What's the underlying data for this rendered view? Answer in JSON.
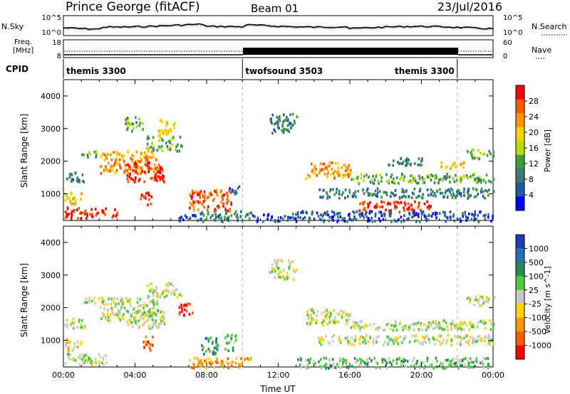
{
  "header": {
    "title": "Prince George (fitACF)",
    "beam": "Beam 01",
    "date": "23/Jul/2016"
  },
  "top_panels": {
    "nsky_label": "N.Sky",
    "nsky_ticks": [
      "10^5",
      "10^0"
    ],
    "nsearch_label": "N.Search",
    "nsearch_ticks": [
      "10^5",
      "10^0"
    ],
    "freq_label_line1": "Freq.",
    "freq_label_line2": "[MHz]",
    "freq_ticks": [
      "18",
      "8"
    ],
    "nave_label": "Nave",
    "nave_ticks": [
      "60",
      "0"
    ],
    "cpid_label": "CPID",
    "cpid_segments": [
      {
        "name": "themis 3300",
        "start_h": 0,
        "end_h": 10
      },
      {
        "name": "twofsound 3503",
        "start_h": 10,
        "end_h": 22
      },
      {
        "name": "themis 3300",
        "start_h": 22,
        "end_h": 24
      }
    ]
  },
  "chart_data": [
    {
      "type": "heatmap",
      "panel": "power",
      "ylabel": "Slant Range [km]",
      "x_range": [
        0,
        24
      ],
      "ylim": [
        180,
        4500
      ],
      "yticks": [
        1000,
        2000,
        3000,
        4000
      ],
      "colorbar_label": "Power [dB]",
      "colorbar_ticks": [
        "28",
        "24",
        "20",
        "16",
        "12",
        "8",
        "4"
      ],
      "colors": [
        "#ff0000",
        "#ff5a00",
        "#ff9600",
        "#ffd200",
        "#b4dc00",
        "#3ca03c",
        "#3c7878",
        "#1e5aa0",
        "#0000ff"
      ],
      "blobs": [
        {
          "t": [
            0.0,
            2.4
          ],
          "r": [
            280,
            620
          ],
          "level": 0
        },
        {
          "t": [
            2.6,
            3.0
          ],
          "r": [
            280,
            560
          ],
          "level": 0
        },
        {
          "t": [
            0.0,
            1.0
          ],
          "r": [
            700,
            1100
          ],
          "level": 3
        },
        {
          "t": [
            0.0,
            1.2
          ],
          "r": [
            1400,
            1700
          ],
          "level": 6
        },
        {
          "t": [
            1.0,
            2.0
          ],
          "r": [
            2150,
            2350
          ],
          "level": 5
        },
        {
          "t": [
            2.0,
            5.2
          ],
          "r": [
            1650,
            2350
          ],
          "level": 2
        },
        {
          "t": [
            3.5,
            5.6
          ],
          "r": [
            1400,
            2000
          ],
          "level": 0
        },
        {
          "t": [
            4.2,
            4.9
          ],
          "r": [
            700,
            1100
          ],
          "level": 0
        },
        {
          "t": [
            4.6,
            6.6
          ],
          "r": [
            2350,
            2800
          ],
          "level": 5
        },
        {
          "t": [
            5.2,
            6.2
          ],
          "r": [
            2800,
            3300
          ],
          "level": 3
        },
        {
          "t": [
            3.4,
            4.4
          ],
          "r": [
            2950,
            3400
          ],
          "level": 5
        },
        {
          "t": [
            7.0,
            9.4
          ],
          "r": [
            500,
            1150
          ],
          "level": 1
        },
        {
          "t": [
            9.2,
            9.8
          ],
          "r": [
            1000,
            1300
          ],
          "level": 7
        },
        {
          "t": [
            6.4,
            7.5
          ],
          "r": [
            180,
            420
          ],
          "level": 7
        },
        {
          "t": [
            7.6,
            10.5
          ],
          "r": [
            180,
            500
          ],
          "level": 6
        },
        {
          "t": [
            10.5,
            13.0
          ],
          "r": [
            180,
            420
          ],
          "level": 7
        },
        {
          "t": [
            13.5,
            16.0
          ],
          "r": [
            1500,
            2000
          ],
          "level": 2
        },
        {
          "t": [
            16.0,
            24.0
          ],
          "r": [
            1350,
            1650
          ],
          "level": 5
        },
        {
          "t": [
            14.2,
            24.0
          ],
          "r": [
            900,
            1200
          ],
          "level": 6
        },
        {
          "t": [
            16.5,
            20.5
          ],
          "r": [
            500,
            800
          ],
          "level": 0
        },
        {
          "t": [
            13.0,
            24.0
          ],
          "r": [
            180,
            500
          ],
          "level": 7
        },
        {
          "t": [
            18.0,
            20.0
          ],
          "r": [
            1900,
            2150
          ],
          "level": 6
        },
        {
          "t": [
            21.0,
            22.5
          ],
          "r": [
            1800,
            2000
          ],
          "level": 3
        },
        {
          "t": [
            22.5,
            24.0
          ],
          "r": [
            2100,
            2400
          ],
          "level": 5
        },
        {
          "t": [
            11.5,
            13.0
          ],
          "r": [
            2900,
            3500
          ],
          "level": 6
        }
      ]
    },
    {
      "type": "heatmap",
      "panel": "velocity",
      "ylabel": "Slant Range [km]",
      "xlabel": "Time UT",
      "x_range": [
        0,
        24
      ],
      "xticks": [
        "00:00",
        "04:00",
        "08:00",
        "12:00",
        "16:00",
        "20:00",
        "00:00"
      ],
      "ylim": [
        180,
        4500
      ],
      "yticks": [
        1000,
        2000,
        3000,
        4000
      ],
      "colorbar_label": "Velocity [m s^-1]",
      "colorbar_ticks": [
        "1000",
        "500",
        "100",
        "25",
        "-25",
        "-100",
        "-500",
        "-1000"
      ],
      "colors": [
        "#1e3cb4",
        "#286eb4",
        "#288c50",
        "#50c83c",
        "#c8c8c8",
        "#ffd200",
        "#ff9600",
        "#ff5a00",
        "#ff0000"
      ],
      "blobs": [
        {
          "t": [
            0.0,
            2.4
          ],
          "r": [
            280,
            620
          ],
          "level": 4
        },
        {
          "t": [
            0.0,
            1.2
          ],
          "r": [
            1400,
            1700
          ],
          "level": 4
        },
        {
          "t": [
            1.0,
            2.0
          ],
          "r": [
            2150,
            2350
          ],
          "level": 4
        },
        {
          "t": [
            2.0,
            5.2
          ],
          "r": [
            1650,
            2350
          ],
          "level": 4
        },
        {
          "t": [
            3.5,
            5.6
          ],
          "r": [
            1400,
            2000
          ],
          "level": 4
        },
        {
          "t": [
            4.6,
            6.6
          ],
          "r": [
            2350,
            2800
          ],
          "level": 4
        },
        {
          "t": [
            4.4,
            5.0
          ],
          "r": [
            700,
            1150
          ],
          "level": 7
        },
        {
          "t": [
            0.0,
            1.0
          ],
          "r": [
            700,
            1100
          ],
          "level": 5
        },
        {
          "t": [
            7.6,
            8.6
          ],
          "r": [
            600,
            1150
          ],
          "level": 2
        },
        {
          "t": [
            9.0,
            9.6
          ],
          "r": [
            700,
            1200
          ],
          "level": 3
        },
        {
          "t": [
            6.4,
            7.2
          ],
          "r": [
            1800,
            2200
          ],
          "level": 8
        },
        {
          "t": [
            7.0,
            10.5
          ],
          "r": [
            180,
            500
          ],
          "level": 6
        },
        {
          "t": [
            13.5,
            16.0
          ],
          "r": [
            1500,
            2000
          ],
          "level": 4
        },
        {
          "t": [
            16.0,
            24.0
          ],
          "r": [
            1350,
            1650
          ],
          "level": 4
        },
        {
          "t": [
            14.2,
            24.0
          ],
          "r": [
            900,
            1200
          ],
          "level": 4
        },
        {
          "t": [
            13.0,
            24.0
          ],
          "r": [
            180,
            500
          ],
          "level": 3
        },
        {
          "t": [
            22.5,
            24.0
          ],
          "r": [
            2100,
            2400
          ],
          "level": 4
        },
        {
          "t": [
            11.5,
            13.0
          ],
          "r": [
            2900,
            3500
          ],
          "level": 4
        }
      ]
    }
  ]
}
